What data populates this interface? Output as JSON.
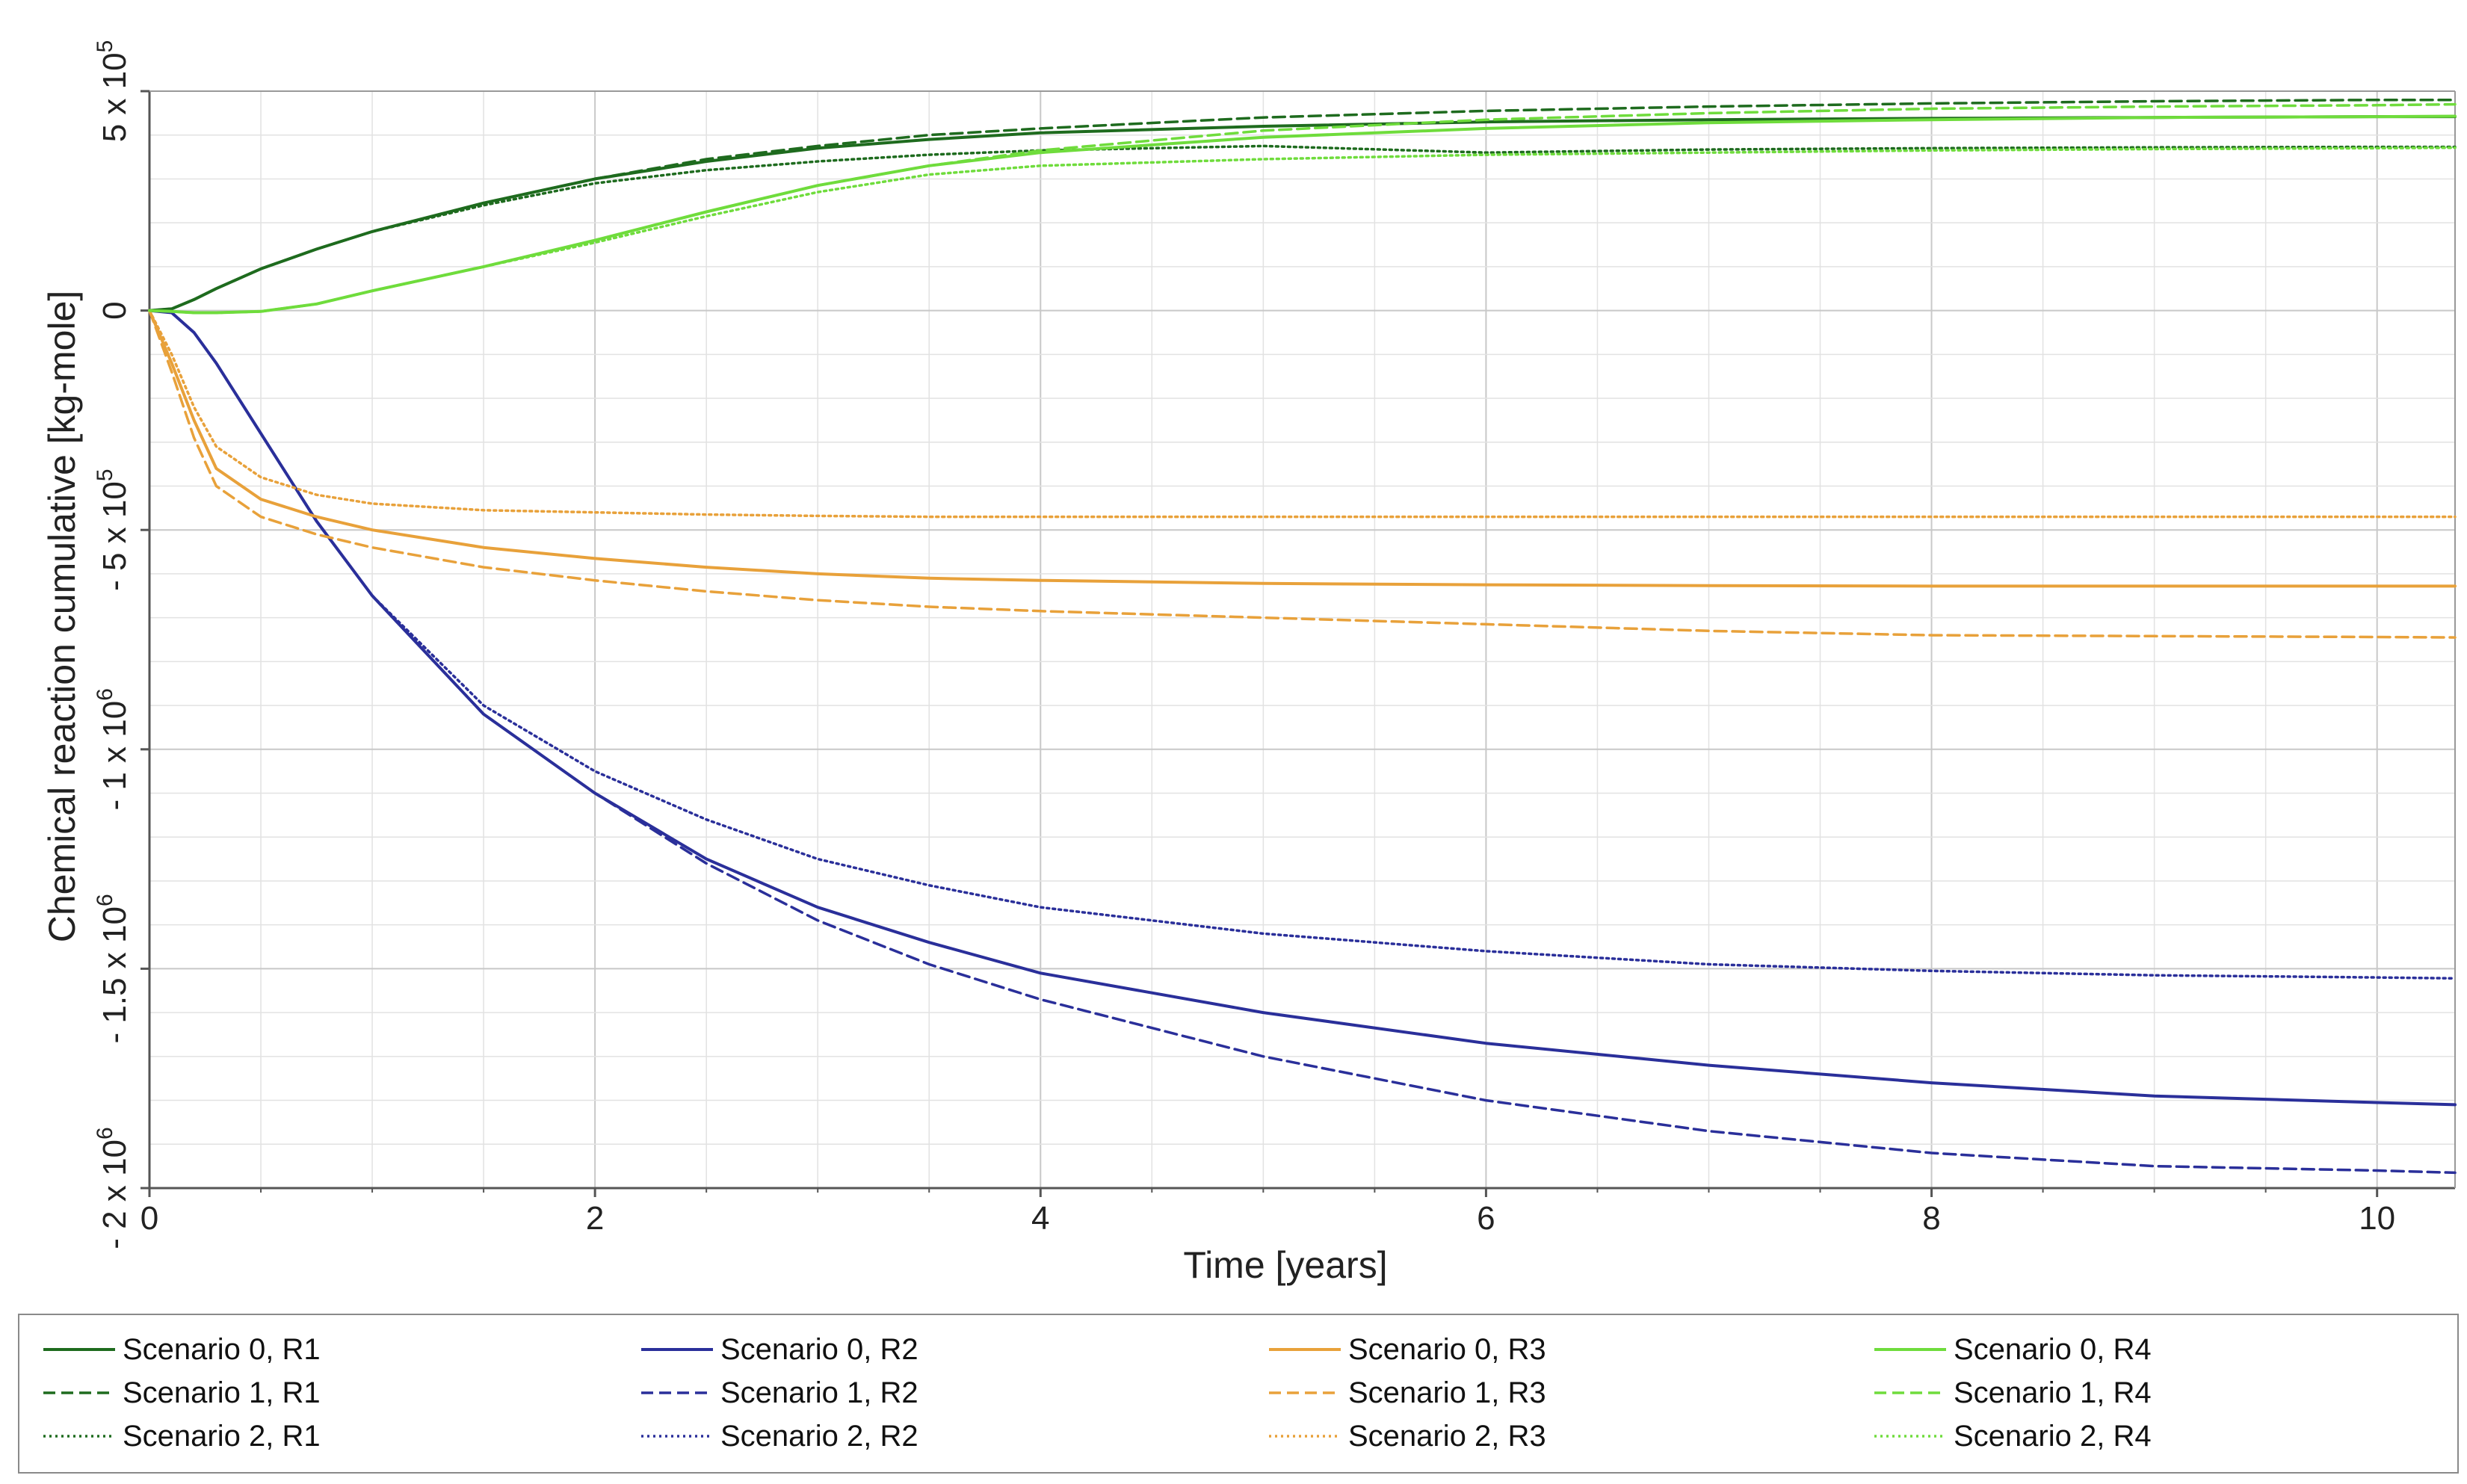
{
  "chart_data": {
    "type": "line",
    "title": "",
    "xlabel": "Time [years]",
    "ylabel": "Chemical reaction cumulative [kg-mole]",
    "xlim": [
      0,
      10.35
    ],
    "ylim": [
      -2000000,
      500000
    ],
    "x_ticks": [
      0,
      2,
      4,
      6,
      8,
      10
    ],
    "x_tick_labels": [
      "0",
      "2",
      "4",
      "6",
      "8",
      "10"
    ],
    "y_ticks": [
      {
        "value": 500000,
        "label": "5 x 10",
        "exp": "5"
      },
      {
        "value": 0,
        "label": "0",
        "exp": ""
      },
      {
        "value": -500000,
        "label": "- 5 x 10",
        "exp": "5"
      },
      {
        "value": -1000000,
        "label": "- 1 x 10",
        "exp": "6"
      },
      {
        "value": -1500000,
        "label": "- 1.5 x 10",
        "exp": "6"
      },
      {
        "value": -2000000,
        "label": "- 2 x 10",
        "exp": "6"
      }
    ],
    "grid": true,
    "legend_position": "bottom",
    "x": [
      0,
      0.1,
      0.2,
      0.3,
      0.5,
      0.75,
      1,
      1.5,
      2,
      2.5,
      3,
      3.5,
      4,
      5,
      6,
      7,
      8,
      9,
      10,
      10.35
    ],
    "series": [
      {
        "name": "Scenario 0, R1",
        "color": "#1e6b1e",
        "style": "solid",
        "values": [
          0,
          4000,
          25000,
          50000,
          95000,
          140000,
          180000,
          245000,
          300000,
          340000,
          370000,
          390000,
          405000,
          420000,
          430000,
          435000,
          438000,
          440000,
          442000,
          442000
        ]
      },
      {
        "name": "Scenario 1, R1",
        "color": "#1e6b1e",
        "style": "dashed",
        "values": [
          0,
          4000,
          25000,
          50000,
          95000,
          140000,
          180000,
          245000,
          300000,
          345000,
          375000,
          400000,
          415000,
          440000,
          455000,
          465000,
          472000,
          477000,
          480000,
          480000
        ]
      },
      {
        "name": "Scenario 2, R1",
        "color": "#1e6b1e",
        "style": "dotted",
        "values": [
          0,
          4000,
          25000,
          50000,
          95000,
          140000,
          180000,
          240000,
          290000,
          320000,
          340000,
          355000,
          365000,
          375000,
          360000,
          367000,
          370000,
          372000,
          373000,
          373000
        ]
      },
      {
        "name": "Scenario 0, R2",
        "color": "#2a2f9a",
        "style": "solid",
        "values": [
          0,
          -5000,
          -50000,
          -120000,
          -280000,
          -480000,
          -650000,
          -920000,
          -1100000,
          -1250000,
          -1360000,
          -1440000,
          -1510000,
          -1600000,
          -1670000,
          -1720000,
          -1760000,
          -1790000,
          -1805000,
          -1810000
        ]
      },
      {
        "name": "Scenario 1, R2",
        "color": "#2a2f9a",
        "style": "dashed",
        "values": [
          0,
          -5000,
          -50000,
          -120000,
          -280000,
          -480000,
          -650000,
          -920000,
          -1100000,
          -1260000,
          -1390000,
          -1490000,
          -1570000,
          -1700000,
          -1800000,
          -1870000,
          -1920000,
          -1950000,
          -1960000,
          -1965000
        ]
      },
      {
        "name": "Scenario 2, R2",
        "color": "#2a2f9a",
        "style": "dotted",
        "values": [
          0,
          -5000,
          -50000,
          -120000,
          -280000,
          -480000,
          -650000,
          -900000,
          -1050000,
          -1160000,
          -1250000,
          -1310000,
          -1360000,
          -1420000,
          -1460000,
          -1490000,
          -1505000,
          -1515000,
          -1520000,
          -1522000
        ]
      },
      {
        "name": "Scenario 0, R3",
        "color": "#e8a13a",
        "style": "solid",
        "values": [
          0,
          -120000,
          -250000,
          -360000,
          -430000,
          -470000,
          -500000,
          -540000,
          -565000,
          -585000,
          -600000,
          -610000,
          -615000,
          -622000,
          -625000,
          -627000,
          -628000,
          -628000,
          -628000,
          -628000
        ]
      },
      {
        "name": "Scenario 1, R3",
        "color": "#e8a13a",
        "style": "dashed",
        "values": [
          0,
          -140000,
          -290000,
          -400000,
          -470000,
          -510000,
          -540000,
          -585000,
          -615000,
          -640000,
          -660000,
          -675000,
          -685000,
          -700000,
          -715000,
          -730000,
          -740000,
          -742000,
          -744000,
          -745000
        ]
      },
      {
        "name": "Scenario 2, R3",
        "color": "#e8a13a",
        "style": "dotted",
        "values": [
          0,
          -100000,
          -220000,
          -310000,
          -380000,
          -420000,
          -440000,
          -455000,
          -460000,
          -465000,
          -468000,
          -470000,
          -470000,
          -470000,
          -470000,
          -470000,
          -470000,
          -470000,
          -470000,
          -470000
        ]
      },
      {
        "name": "Scenario 0, R4",
        "color": "#6fdc3c",
        "style": "solid",
        "values": [
          0,
          -2000,
          -5000,
          -5000,
          -2000,
          15000,
          45000,
          100000,
          160000,
          225000,
          285000,
          330000,
          360000,
          395000,
          415000,
          428000,
          435000,
          440000,
          442000,
          443000
        ]
      },
      {
        "name": "Scenario 1, R4",
        "color": "#6fdc3c",
        "style": "dashed",
        "values": [
          0,
          -2000,
          -5000,
          -5000,
          -2000,
          15000,
          45000,
          100000,
          160000,
          225000,
          285000,
          330000,
          365000,
          410000,
          435000,
          450000,
          460000,
          465000,
          468000,
          470000
        ]
      },
      {
        "name": "Scenario 2, R4",
        "color": "#6fdc3c",
        "style": "dotted",
        "values": [
          0,
          -2000,
          -5000,
          -5000,
          -2000,
          15000,
          45000,
          100000,
          155000,
          215000,
          270000,
          310000,
          330000,
          345000,
          355000,
          360000,
          365000,
          368000,
          370000,
          371000
        ]
      }
    ]
  }
}
